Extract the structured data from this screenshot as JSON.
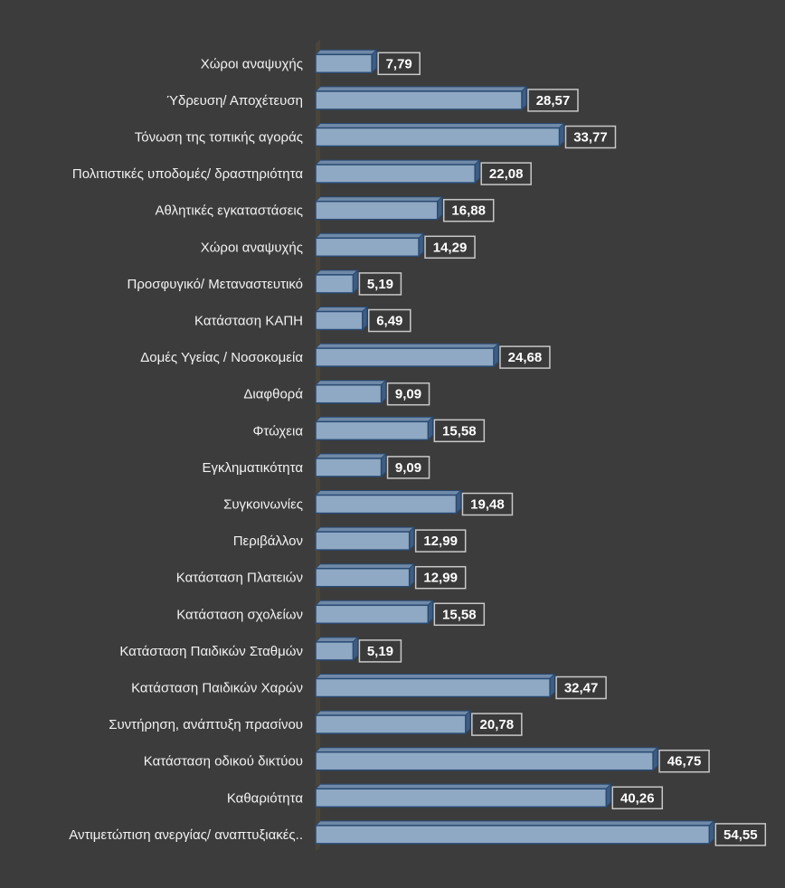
{
  "chart_data": {
    "type": "bar",
    "orientation": "horizontal",
    "three_d": true,
    "title": "",
    "xlabel": "",
    "ylabel": "",
    "xlim": [
      0,
      55
    ],
    "grid": false,
    "legend": "none",
    "colors": {
      "background": "#3c3c3c",
      "bar_front": "#8fa9c4",
      "bar_top": "#6f89a8",
      "bar_side": "#3f5d82",
      "bar_edge": "#2a4a72",
      "wall": "#4a443a",
      "label_box_fill": "#3a3a3a",
      "label_box_border": "#c8c8c8",
      "text": "#f2f2f2"
    },
    "categories": [
      "Χώροι αναψυχής",
      "Ύδρευση/ Αποχέτευση",
      "Τόνωση της τοπικής αγοράς",
      "Πολιτιστικές υποδομές/ δραστηριότητα",
      "Αθλητικές εγκαταστάσεις",
      "Χώροι αναψυχής",
      "Προσφυγικό/ Μεταναστευτικό",
      "Κατάσταση ΚΑΠΗ",
      "Δομές Υγείας / Νοσοκομεία",
      "Διαφθορά",
      "Φτώχεια",
      "Εγκληματικότητα",
      "Συγκοινωνίες",
      "Περιβάλλον",
      "Κατάσταση Πλατειών",
      "Κατάσταση σχολείων",
      "Κατάσταση Παιδικών Σταθμών",
      "Κατάσταση Παιδικών Χαρών",
      "Συντήρηση, ανάπτυξη πρασίνου",
      "Κατάσταση οδικού δικτύου",
      "Καθαριότητα",
      "Αντιμετώπιση ανεργίας/ αναπτυξιακές.."
    ],
    "values": [
      7.79,
      28.57,
      33.77,
      22.08,
      16.88,
      14.29,
      5.19,
      6.49,
      24.68,
      9.09,
      15.58,
      9.09,
      19.48,
      12.99,
      12.99,
      15.58,
      5.19,
      32.47,
      20.78,
      46.75,
      40.26,
      54.55
    ],
    "data_labels": [
      "7,79",
      "28,57",
      "33,77",
      "22,08",
      "16,88",
      "14,29",
      "5,19",
      "6,49",
      "24,68",
      "9,09",
      "15,58",
      "9,09",
      "19,48",
      "12,99",
      "12,99",
      "15,58",
      "5,19",
      "32,47",
      "20,78",
      "46,75",
      "40,26",
      "54,55"
    ]
  }
}
